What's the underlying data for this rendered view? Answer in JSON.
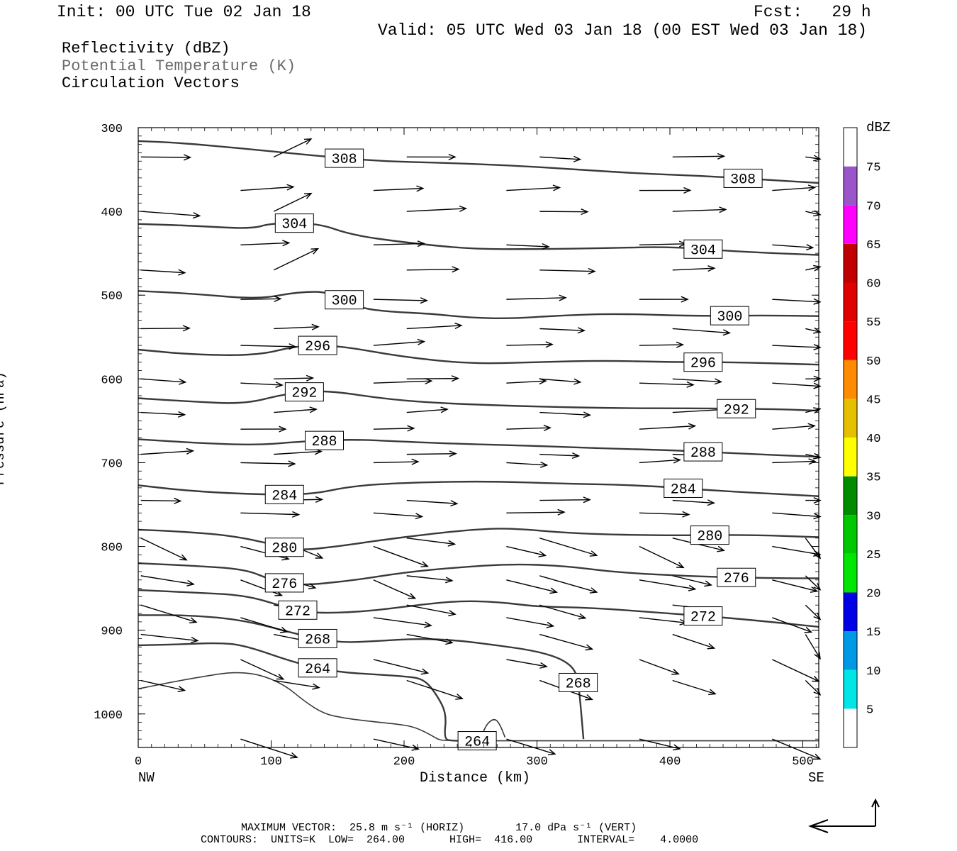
{
  "header": {
    "init": "Init: 00 UTC Tue 02 Jan 18",
    "fcst": "Fcst:   29 h",
    "valid": "Valid: 05 UTC Wed 03 Jan 18 (00 EST Wed 03 Jan 18)"
  },
  "legend": {
    "line1": "Reflectivity (dBZ)",
    "line2": "Potential Temperature (K)",
    "line3": "Circulation Vectors"
  },
  "footer": {
    "line1": "MAXIMUM VECTOR:  25.8 m s⁻¹ (HORIZ)        17.0 dPa s⁻¹ (VERT)",
    "line2": "CONTOURS:  UNITS=K  LOW=  264.00       HIGH=  416.00       INTERVAL=    4.0000"
  },
  "colorbar": {
    "unit": "dBZ",
    "levels": [
      "5",
      "10",
      "15",
      "20",
      "25",
      "30",
      "35",
      "40",
      "45",
      "50",
      "55",
      "60",
      "65",
      "70",
      "75"
    ],
    "colors": [
      "#00e5e5",
      "#0099e6",
      "#0000e6",
      "#00e600",
      "#00c800",
      "#008c00",
      "#ffff00",
      "#e6c000",
      "#ff8c00",
      "#ff0000",
      "#e00000",
      "#c00000",
      "#ff00ff",
      "#9955c9",
      "#ffffff"
    ]
  },
  "chart_data": {
    "type": "contour",
    "xlabel": "Distance (km)",
    "ylabel": "Pressure (hPa)",
    "xlim": [
      0,
      512
    ],
    "ylim": [
      1040,
      300
    ],
    "x_ticks": [
      "0",
      "100",
      "200",
      "300",
      "400",
      "500"
    ],
    "y_ticks": [
      "300",
      "400",
      "500",
      "600",
      "700",
      "800",
      "900",
      "1000"
    ],
    "x_end_labels": {
      "left": "NW",
      "right": "SE"
    },
    "grid": false,
    "contour_unit": "K",
    "contours": [
      {
        "label": "308",
        "x": [
          0,
          30,
          80,
          130,
          180,
          230,
          280,
          330,
          380,
          430,
          480,
          512
        ],
        "p": [
          316,
          318,
          325,
          333,
          340,
          342,
          345,
          350,
          355,
          358,
          363,
          366
        ]
      },
      {
        "label": "304",
        "x": [
          0,
          40,
          85,
          100,
          135,
          160,
          200,
          250,
          300,
          350,
          400,
          450,
          512
        ],
        "p": [
          415,
          417,
          421,
          414,
          414,
          428,
          437,
          445,
          445,
          444,
          442,
          448,
          452
        ]
      },
      {
        "label": "300",
        "x": [
          0,
          40,
          90,
          120,
          145,
          165,
          190,
          220,
          250,
          280,
          320,
          360,
          420,
          470,
          512
        ],
        "p": [
          495,
          498,
          505,
          496,
          496,
          515,
          520,
          522,
          527,
          528,
          524,
          522,
          525,
          524,
          525
        ]
      },
      {
        "label": "296",
        "x": [
          0,
          40,
          90,
          120,
          150,
          200,
          250,
          300,
          350,
          400,
          450,
          512
        ],
        "p": [
          565,
          571,
          572,
          560,
          560,
          574,
          582,
          580,
          578,
          580,
          580,
          583
        ]
      },
      {
        "label": "292",
        "x": [
          0,
          40,
          80,
          110,
          140,
          190,
          240,
          300,
          360,
          420,
          480,
          512
        ],
        "p": [
          623,
          627,
          630,
          618,
          613,
          625,
          630,
          633,
          635,
          635,
          636,
          638
        ]
      },
      {
        "label": "288",
        "x": [
          0,
          50,
          90,
          120,
          160,
          200,
          250,
          300,
          350,
          400,
          450,
          512
        ],
        "p": [
          672,
          677,
          679,
          675,
          672,
          675,
          678,
          680,
          683,
          685,
          689,
          693
        ]
      },
      {
        "label": "284",
        "x": [
          0,
          40,
          90,
          130,
          160,
          200,
          260,
          320,
          380,
          440,
          512
        ],
        "p": [
          727,
          734,
          738,
          738,
          728,
          724,
          722,
          725,
          727,
          734,
          740
        ]
      },
      {
        "label": "280",
        "x": [
          0,
          30,
          70,
          100,
          120,
          150,
          180,
          220,
          250,
          280,
          330,
          400,
          460,
          512
        ],
        "p": [
          780,
          782,
          787,
          797,
          805,
          800,
          793,
          785,
          780,
          778,
          785,
          787,
          786,
          789
        ]
      },
      {
        "label": "276",
        "x": [
          0,
          40,
          80,
          100,
          120,
          160,
          200,
          240,
          280,
          320,
          360,
          420,
          480,
          512
        ],
        "p": [
          820,
          823,
          827,
          840,
          847,
          841,
          831,
          825,
          821,
          823,
          831,
          836,
          838,
          838
        ]
      },
      {
        "label": "272",
        "x": [
          0,
          40,
          80,
          110,
          130,
          170,
          210,
          240,
          270,
          300,
          340,
          400,
          450,
          512
        ],
        "p": [
          852,
          855,
          858,
          872,
          880,
          878,
          870,
          865,
          866,
          872,
          873,
          880,
          886,
          896
        ]
      },
      {
        "label": "268",
        "x": [
          0,
          40,
          80,
          120,
          150,
          180,
          210,
          240,
          270,
          300,
          320,
          330,
          332,
          335
        ],
        "p": [
          882,
          882,
          888,
          905,
          915,
          913,
          910,
          912,
          918,
          925,
          935,
          950,
          975,
          1030
        ]
      },
      {
        "label": "264",
        "x": [
          0,
          30,
          60,
          80,
          120,
          150,
          180,
          200,
          215,
          225,
          232,
          230,
          236,
          250,
          260,
          262
        ],
        "p": [
          918,
          917,
          915,
          918,
          940,
          950,
          953,
          955,
          958,
          978,
          1000,
          1030,
          1032,
          1032,
          1032,
          1032
        ]
      },
      {
        "label": "",
        "x": [
          0,
          25,
          50,
          70,
          90,
          110,
          125,
          140,
          155,
          170,
          200,
          210,
          220,
          225,
          230,
          290,
          350,
          420,
          512
        ],
        "p": [
          970,
          962,
          955,
          950,
          952,
          965,
          985,
          1000,
          1005,
          1008,
          1013,
          1017,
          1025,
          1030,
          1032,
          1032,
          1032,
          1032,
          1032
        ]
      },
      {
        "label": "",
        "x": [
          258,
          262,
          268,
          272,
          276
        ],
        "p": [
          1028,
          1012,
          1005,
          1012,
          1028
        ]
      }
    ],
    "vector_barbs_note": "Circulation vectors drawn at grid points"
  }
}
